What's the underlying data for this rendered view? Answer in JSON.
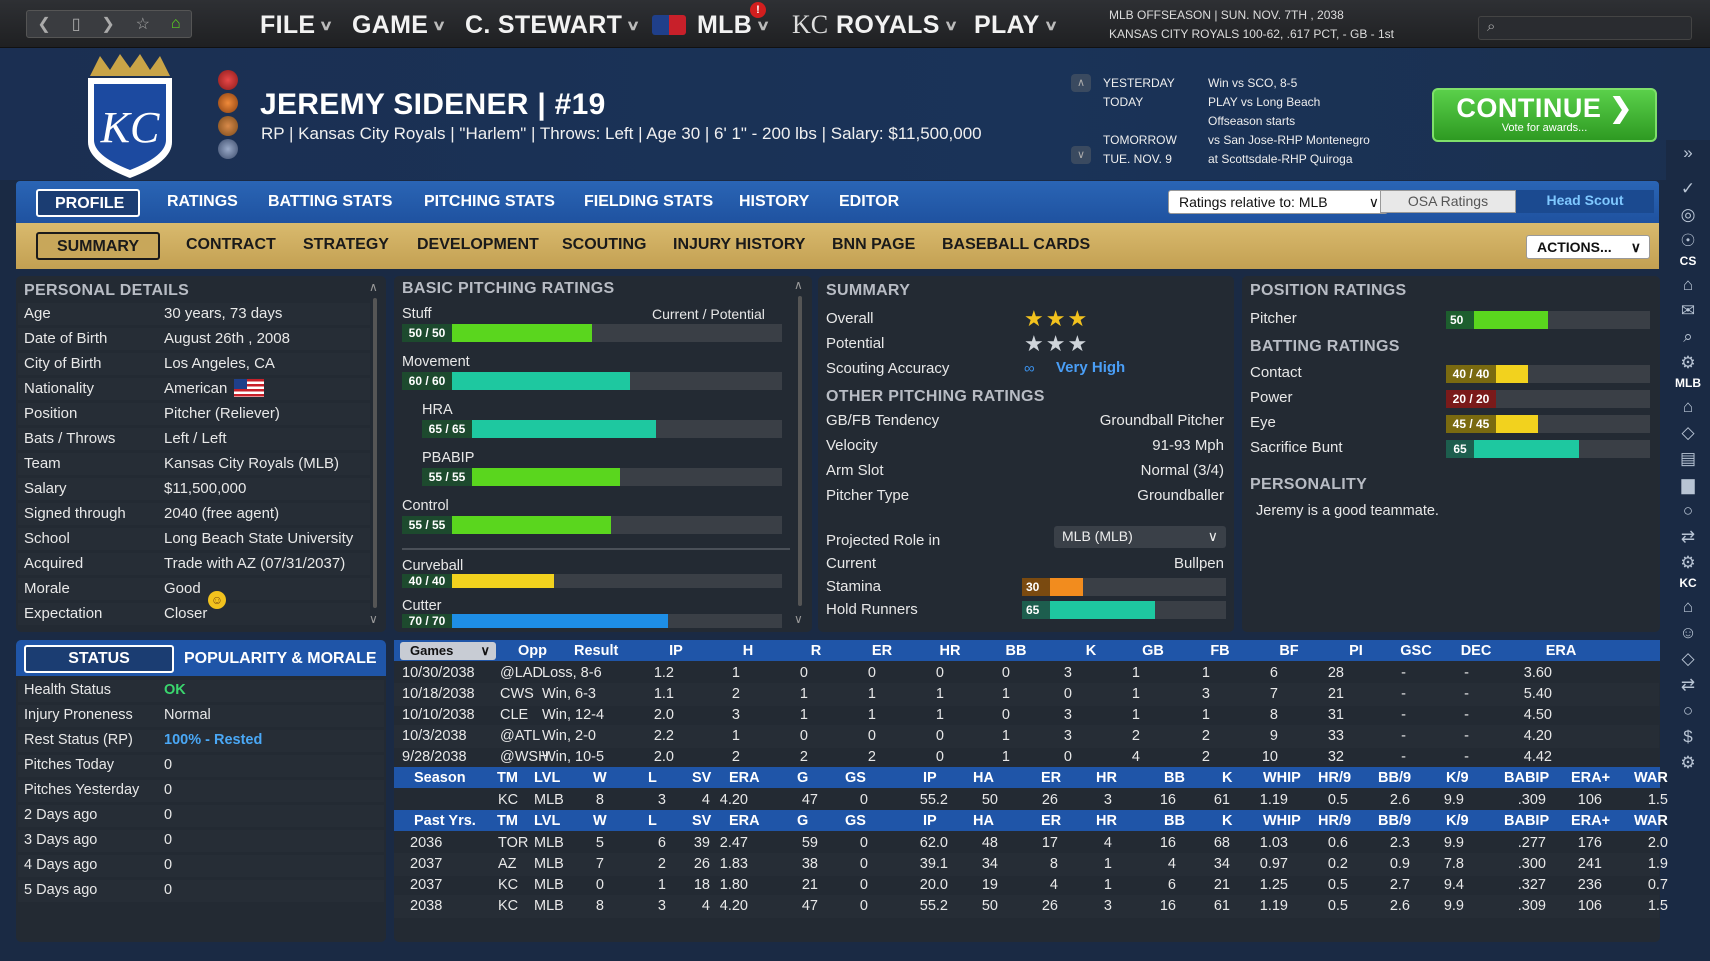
{
  "top": {
    "menus": [
      "FILE",
      "GAME",
      "C. STEWART",
      "MLB",
      "ROYALS",
      "PLAY"
    ],
    "info_line1": "MLB OFFSEASON  |  SUN. NOV. 7TH , 2038",
    "info_line2": "KANSAS CITY ROYALS  100-62, .617 PCT, - GB - 1st",
    "logo_text": "KC"
  },
  "player": {
    "name": "JEREMY SIDENER  |  #19",
    "line": "RP | Kansas City Royals  |  \"Harlem\" | Throws: Left  |  Age 30  |  6' 1\" - 200 lbs  |  Salary: $11,500,000"
  },
  "schedule": {
    "l1": "YESTERDAY",
    "r1": "Win vs SCO, 8-5",
    "l2": "TODAY",
    "r2": "PLAY vs Long Beach",
    "r3": "Offseason starts",
    "l4": "TOMORROW",
    "r4": "vs San Jose-RHP Montenegro",
    "l5": "TUE. NOV. 9",
    "r5": "at Scottsdale-RHP Quiroga"
  },
  "continue": {
    "label": "CONTINUE",
    "sub": "Vote for awards..."
  },
  "tabs1": [
    "PROFILE",
    "RATINGS",
    "BATTING STATS",
    "PITCHING STATS",
    "FIELDING STATS",
    "HISTORY",
    "EDITOR"
  ],
  "ratings_relative": "Ratings relative to: MLB",
  "osa": "OSA Ratings",
  "head_scout": "Head Scout",
  "tabs2": [
    "SUMMARY",
    "CONTRACT",
    "STRATEGY",
    "DEVELOPMENT",
    "SCOUTING",
    "INJURY HISTORY",
    "BNN PAGE",
    "BASEBALL CARDS"
  ],
  "actions": "ACTIONS...",
  "personal": {
    "title": "PERSONAL DETAILS",
    "rows": [
      [
        "Age",
        "30 years, 73 days"
      ],
      [
        "Date of Birth",
        "August 26th , 2008"
      ],
      [
        "City of Birth",
        "Los Angeles, CA"
      ],
      [
        "Nationality",
        "American"
      ],
      [
        "Position",
        "Pitcher (Reliever)"
      ],
      [
        "Bats / Throws",
        "Left / Left"
      ],
      [
        "Team",
        "Kansas City Royals (MLB)"
      ],
      [
        "Salary",
        "$11,500,000"
      ],
      [
        "Signed through",
        "2040 (free agent)"
      ],
      [
        "School",
        "Long Beach State University"
      ],
      [
        "Acquired",
        "Trade with AZ (07/31/2037)"
      ],
      [
        "Morale",
        "Good"
      ],
      [
        "Expectation",
        "Closer"
      ]
    ]
  },
  "basic": {
    "title": "BASIC PITCHING RATINGS",
    "header_right": "Current / Potential",
    "items": [
      {
        "name": "Stuff",
        "label": "50 / 50",
        "value": 50,
        "color": "#5ad61e"
      },
      {
        "name": "Movement",
        "label": "60 / 60",
        "value": 60,
        "color": "#1ec8a0"
      },
      {
        "name": "HRA",
        "label": "65 / 65",
        "value": 65,
        "color": "#1ec8a0"
      },
      {
        "name": "PBABIP",
        "label": "55 / 55",
        "value": 55,
        "color": "#5ad61e"
      },
      {
        "name": "Control",
        "label": "55 / 55",
        "value": 55,
        "color": "#5ad61e"
      },
      {
        "name": "Curveball",
        "label": "40 / 40",
        "value": 40,
        "color": "#f2d21e"
      },
      {
        "name": "Cutter",
        "label": "70 / 70",
        "value": 70,
        "color": "#1e8ee6"
      }
    ]
  },
  "summary": {
    "title": "SUMMARY",
    "overall": "Overall",
    "potential": "Potential",
    "scouting": "Scouting Accuracy",
    "scouting_val": "Very High",
    "overall_stars": 3,
    "potential_stars": 3,
    "other_title": "OTHER PITCHING RATINGS",
    "rows": [
      [
        "GB/FB Tendency",
        "Groundball Pitcher"
      ],
      [
        "Velocity",
        "91-93 Mph"
      ],
      [
        "Arm Slot",
        "Normal (3/4)"
      ],
      [
        "Pitcher Type",
        "Groundballer"
      ]
    ],
    "projected": "Projected Role in",
    "projected_dd": "MLB (MLB)",
    "current": "Current",
    "current_val": "Bullpen",
    "stamina": "Stamina",
    "stamina_val": "30",
    "stamina_num": 30,
    "hold": "Hold Runners",
    "hold_val": "65",
    "hold_num": 65
  },
  "position": {
    "title": "POSITION RATINGS",
    "pitcher": "Pitcher",
    "pitcher_val": "50",
    "pitcher_num": 50,
    "batting_title": "BATTING RATINGS",
    "batting": [
      {
        "name": "Contact",
        "label": "40 / 40",
        "value": 40,
        "color": "#f2d21e",
        "lab": "#7a6a10"
      },
      {
        "name": "Power",
        "label": "20 / 20",
        "value": 20,
        "color": "#e83c3c",
        "lab": "#7a1a1a"
      },
      {
        "name": "Eye",
        "label": "45 / 45",
        "value": 45,
        "color": "#f2d21e",
        "lab": "#7a6a10"
      },
      {
        "name": "Sacrifice Bunt",
        "label": "65",
        "value": 65,
        "color": "#1ec8a0",
        "lab": "#1d5e4e"
      }
    ],
    "personality_title": "PERSONALITY",
    "personality": "Jeremy is a good teammate."
  },
  "status": {
    "tab1": "STATUS",
    "tab2": "POPULARITY & MORALE",
    "rows": [
      [
        "Health Status",
        "OK"
      ],
      [
        "Injury Proneness",
        "Normal"
      ],
      [
        "Rest Status (RP)",
        "100% - Rested"
      ],
      [
        "Pitches Today",
        "0"
      ],
      [
        "Pitches Yesterday",
        "0"
      ],
      [
        "2 Days ago",
        "0"
      ],
      [
        "3 Days ago",
        "0"
      ],
      [
        "4 Days ago",
        "0"
      ],
      [
        "5 Days ago",
        "0"
      ]
    ]
  },
  "games": {
    "dd": "Games",
    "headers": [
      "Opp",
      "Result",
      "IP",
      "H",
      "R",
      "ER",
      "HR",
      "BB",
      "K",
      "GB",
      "FB",
      "BF",
      "PI",
      "GSC",
      "DEC",
      "ERA"
    ],
    "rows": [
      [
        "10/30/2038",
        "@LAD",
        "Loss, 8-6",
        "1.2",
        "1",
        "0",
        "0",
        "0",
        "0",
        "3",
        "1",
        "1",
        "6",
        "28",
        "-",
        "-",
        "3.60"
      ],
      [
        "10/18/2038",
        "CWS",
        "Win, 6-3",
        "1.1",
        "2",
        "1",
        "1",
        "1",
        "1",
        "0",
        "1",
        "3",
        "7",
        "21",
        "-",
        "-",
        "5.40"
      ],
      [
        "10/10/2038",
        "CLE",
        "Win, 12-4",
        "2.0",
        "3",
        "1",
        "1",
        "1",
        "0",
        "3",
        "1",
        "1",
        "8",
        "31",
        "-",
        "-",
        "4.50"
      ],
      [
        "10/3/2038",
        "@ATL",
        "Win, 2-0",
        "2.2",
        "1",
        "0",
        "0",
        "0",
        "1",
        "3",
        "2",
        "2",
        "9",
        "33",
        "-",
        "-",
        "4.20"
      ],
      [
        "9/28/2038",
        "@WSH",
        "Win, 10-5",
        "2.0",
        "2",
        "2",
        "2",
        "0",
        "1",
        "0",
        "4",
        "2",
        "10",
        "32",
        "-",
        "-",
        "4.42"
      ]
    ],
    "season_headers": [
      "Season",
      "TM",
      "LVL",
      "W",
      "L",
      "SV",
      "ERA",
      "G",
      "GS",
      "IP",
      "HA",
      "ER",
      "HR",
      "BB",
      "K",
      "WHIP",
      "HR/9",
      "BB/9",
      "K/9",
      "BABIP",
      "ERA+",
      "WAR"
    ],
    "season_row": [
      "",
      "KC",
      "MLB",
      "8",
      "3",
      "4",
      "4.20",
      "47",
      "0",
      "55.2",
      "50",
      "26",
      "3",
      "16",
      "61",
      "1.19",
      "0.5",
      "2.6",
      "9.9",
      ".309",
      "106",
      "1.5"
    ],
    "past_headers": [
      "Past Yrs.",
      "TM",
      "LVL",
      "W",
      "L",
      "SV",
      "ERA",
      "G",
      "GS",
      "IP",
      "HA",
      "ER",
      "HR",
      "BB",
      "K",
      "WHIP",
      "HR/9",
      "BB/9",
      "K/9",
      "BABIP",
      "ERA+",
      "WAR"
    ],
    "past_rows": [
      [
        "2036",
        "TOR",
        "MLB",
        "5",
        "6",
        "39",
        "2.47",
        "59",
        "0",
        "62.0",
        "48",
        "17",
        "4",
        "16",
        "68",
        "1.03",
        "0.6",
        "2.3",
        "9.9",
        ".277",
        "176",
        "2.0"
      ],
      [
        "2037",
        "AZ",
        "MLB",
        "7",
        "2",
        "26",
        "1.83",
        "38",
        "0",
        "39.1",
        "34",
        "8",
        "1",
        "4",
        "34",
        "0.97",
        "0.2",
        "0.9",
        "7.8",
        ".300",
        "241",
        "1.9"
      ],
      [
        "2037",
        "KC",
        "MLB",
        "0",
        "1",
        "18",
        "1.80",
        "21",
        "0",
        "20.0",
        "19",
        "4",
        "1",
        "6",
        "21",
        "1.25",
        "0.5",
        "2.7",
        "9.4",
        ".327",
        "236",
        "0.7"
      ],
      [
        "2038",
        "KC",
        "MLB",
        "8",
        "3",
        "4",
        "4.20",
        "47",
        "0",
        "55.2",
        "50",
        "26",
        "3",
        "16",
        "61",
        "1.19",
        "0.5",
        "2.6",
        "9.9",
        ".309",
        "106",
        "1.5"
      ]
    ]
  },
  "sidebar": {
    "cs": "CS",
    "mlb": "MLB",
    "kc": "KC"
  }
}
